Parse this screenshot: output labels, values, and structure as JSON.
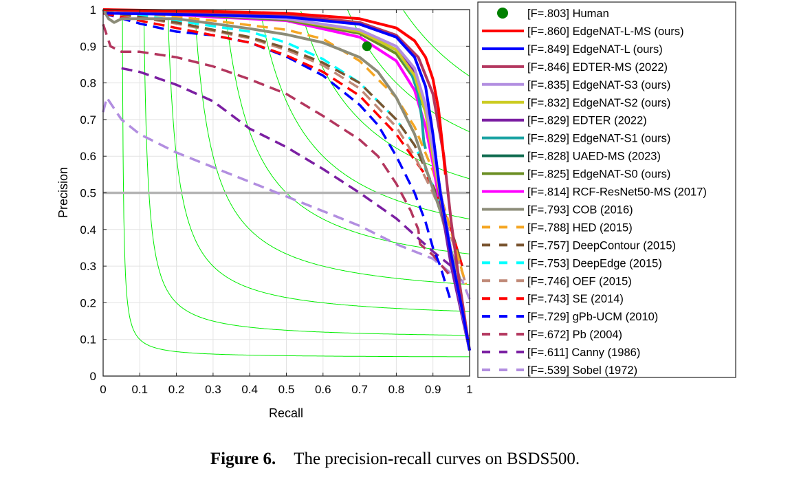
{
  "chart_data": {
    "type": "line",
    "xlabel": "Recall",
    "ylabel": "Precision",
    "xlim": [
      0,
      1
    ],
    "ylim": [
      0,
      1
    ],
    "xticks": [
      "0",
      "0.1",
      "0.2",
      "0.3",
      "0.4",
      "0.5",
      "0.6",
      "0.7",
      "0.8",
      "0.9",
      "1"
    ],
    "yticks": [
      "0",
      "0.1",
      "0.2",
      "0.3",
      "0.4",
      "0.5",
      "0.6",
      "0.7",
      "0.8",
      "0.9",
      "1"
    ],
    "grid": true,
    "legend_position": "right-outside",
    "iso_f_lines": [
      0.1,
      0.2,
      0.3,
      0.4,
      0.5,
      0.6,
      0.7,
      0.8,
      0.9
    ],
    "iso_f_color": "#00ee00",
    "reference_line": {
      "precision": 0.5,
      "color": "#b4b4b4"
    },
    "human_point": {
      "name": "[F=.803] Human",
      "recall": 0.72,
      "precision": 0.9,
      "color": "#008000"
    },
    "series": [
      {
        "name": "[F=.860] EdgeNAT-L-MS (ours)",
        "color": "#ff0000",
        "style": "solid",
        "points": [
          [
            0,
            1
          ],
          [
            0.3,
            0.995
          ],
          [
            0.5,
            0.99
          ],
          [
            0.7,
            0.975
          ],
          [
            0.8,
            0.95
          ],
          [
            0.85,
            0.915
          ],
          [
            0.88,
            0.87
          ],
          [
            0.9,
            0.81
          ],
          [
            0.915,
            0.73
          ],
          [
            0.925,
            0.64
          ],
          [
            0.934,
            0.55
          ]
        ]
      },
      {
        "name": "[F=.849] EdgeNAT-L (ours)",
        "color": "#0000ff",
        "style": "solid",
        "points": [
          [
            0.01,
            0.99
          ],
          [
            0.3,
            0.985
          ],
          [
            0.5,
            0.98
          ],
          [
            0.7,
            0.96
          ],
          [
            0.8,
            0.925
          ],
          [
            0.85,
            0.87
          ],
          [
            0.88,
            0.79
          ],
          [
            0.9,
            0.66
          ],
          [
            0.92,
            0.5
          ],
          [
            0.95,
            0.33
          ],
          [
            0.98,
            0.18
          ],
          [
            1,
            0.07
          ]
        ]
      },
      {
        "name": "[F=.846] EDTER-MS (2022)",
        "color": "#b3365e",
        "style": "solid",
        "points": [
          [
            0,
            1
          ],
          [
            0.3,
            0.99
          ],
          [
            0.5,
            0.985
          ],
          [
            0.7,
            0.965
          ],
          [
            0.8,
            0.93
          ],
          [
            0.86,
            0.87
          ],
          [
            0.9,
            0.77
          ],
          [
            0.93,
            0.6
          ],
          [
            0.95,
            0.42
          ],
          [
            0.97,
            0.27
          ],
          [
            1,
            0.07
          ]
        ]
      },
      {
        "name": "[F=.835] EdgeNAT-S3 (ours)",
        "color": "#b28ee0",
        "style": "solid",
        "points": [
          [
            0,
            1
          ],
          [
            0.3,
            0.985
          ],
          [
            0.5,
            0.975
          ],
          [
            0.7,
            0.945
          ],
          [
            0.8,
            0.9
          ],
          [
            0.85,
            0.84
          ],
          [
            0.88,
            0.74
          ],
          [
            0.9,
            0.62
          ],
          [
            0.93,
            0.45
          ],
          [
            0.96,
            0.28
          ],
          [
            1,
            0.07
          ]
        ]
      },
      {
        "name": "[F=.832] EdgeNAT-S2 (ours)",
        "color": "#cccc22",
        "style": "solid",
        "points": [
          [
            0,
            1
          ],
          [
            0.3,
            0.985
          ],
          [
            0.5,
            0.975
          ],
          [
            0.7,
            0.94
          ],
          [
            0.8,
            0.89
          ],
          [
            0.85,
            0.82
          ],
          [
            0.88,
            0.72
          ],
          [
            0.9,
            0.6
          ],
          [
            0.93,
            0.44
          ],
          [
            0.96,
            0.28
          ],
          [
            1,
            0.07
          ]
        ]
      },
      {
        "name": "[F=.829] EDTER (2022)",
        "color": "#7b1fa2",
        "style": "solid",
        "points": [
          [
            0,
            1
          ],
          [
            0.3,
            0.985
          ],
          [
            0.5,
            0.975
          ],
          [
            0.7,
            0.94
          ],
          [
            0.8,
            0.89
          ],
          [
            0.85,
            0.83
          ],
          [
            0.88,
            0.74
          ],
          [
            0.9,
            0.63
          ],
          [
            0.92,
            0.48
          ],
          [
            0.95,
            0.3
          ],
          [
            1,
            0.07
          ]
        ]
      },
      {
        "name": "[F=.829] EdgeNAT-S1 (ours)",
        "color": "#1aa3a3",
        "style": "solid",
        "points": [
          [
            0,
            1
          ],
          [
            0.3,
            0.985
          ],
          [
            0.5,
            0.975
          ],
          [
            0.7,
            0.94
          ],
          [
            0.8,
            0.89
          ],
          [
            0.84,
            0.83
          ],
          [
            0.86,
            0.77
          ],
          [
            0.87,
            0.7
          ],
          [
            0.875,
            0.64
          ],
          [
            0.88,
            0.62
          ]
        ]
      },
      {
        "name": "[F=.828] UAED-MS (2023)",
        "color": "#0e6b4f",
        "style": "solid",
        "points": [
          [
            0,
            1
          ],
          [
            0.3,
            0.985
          ],
          [
            0.5,
            0.975
          ],
          [
            0.7,
            0.94
          ],
          [
            0.8,
            0.89
          ],
          [
            0.85,
            0.82
          ],
          [
            0.88,
            0.73
          ],
          [
            0.9,
            0.62
          ],
          [
            0.93,
            0.45
          ],
          [
            0.96,
            0.28
          ],
          [
            1,
            0.07
          ]
        ]
      },
      {
        "name": "[F=.825] EdgeNAT-S0 (ours)",
        "color": "#6b8e23",
        "style": "solid",
        "points": [
          [
            0,
            1
          ],
          [
            0.3,
            0.983
          ],
          [
            0.5,
            0.972
          ],
          [
            0.7,
            0.935
          ],
          [
            0.8,
            0.88
          ],
          [
            0.85,
            0.81
          ],
          [
            0.88,
            0.72
          ],
          [
            0.9,
            0.61
          ],
          [
            0.93,
            0.44
          ],
          [
            0.96,
            0.28
          ],
          [
            1,
            0.07
          ]
        ]
      },
      {
        "name": "[F=.814] RCF-ResNet50-MS (2017)",
        "color": "#ff00ff",
        "style": "solid",
        "points": [
          [
            0,
            1
          ],
          [
            0.3,
            0.98
          ],
          [
            0.5,
            0.97
          ],
          [
            0.7,
            0.925
          ],
          [
            0.8,
            0.86
          ],
          [
            0.85,
            0.78
          ],
          [
            0.88,
            0.68
          ],
          [
            0.9,
            0.58
          ],
          [
            0.915,
            0.49
          ]
        ]
      },
      {
        "name": "[F=.793] COB (2016)",
        "color": "#8c8c78",
        "style": "solid",
        "points": [
          [
            0,
            1
          ],
          [
            0.015,
            0.975
          ],
          [
            0.03,
            0.965
          ],
          [
            0.05,
            0.975
          ],
          [
            0.2,
            0.975
          ],
          [
            0.3,
            0.962
          ],
          [
            0.4,
            0.948
          ],
          [
            0.5,
            0.932
          ],
          [
            0.6,
            0.91
          ],
          [
            0.7,
            0.87
          ],
          [
            0.75,
            0.83
          ],
          [
            0.8,
            0.76
          ],
          [
            0.85,
            0.66
          ],
          [
            0.88,
            0.57
          ],
          [
            0.92,
            0.45
          ],
          [
            0.95,
            0.34
          ],
          [
            0.975,
            0.26
          ]
        ]
      },
      {
        "name": "[F=.788] HED (2015)",
        "color": "#f5a623",
        "style": "dashed",
        "points": [
          [
            0,
            1
          ],
          [
            0.3,
            0.97
          ],
          [
            0.5,
            0.945
          ],
          [
            0.6,
            0.92
          ],
          [
            0.7,
            0.86
          ],
          [
            0.8,
            0.76
          ],
          [
            0.85,
            0.68
          ],
          [
            0.9,
            0.56
          ],
          [
            0.94,
            0.43
          ],
          [
            0.97,
            0.32
          ],
          [
            0.99,
            0.25
          ]
        ]
      },
      {
        "name": "[F=.757] DeepContour (2015)",
        "color": "#7a5530",
        "style": "dashed",
        "points": [
          [
            0,
            0.995
          ],
          [
            0.2,
            0.965
          ],
          [
            0.4,
            0.925
          ],
          [
            0.5,
            0.895
          ],
          [
            0.6,
            0.855
          ],
          [
            0.7,
            0.8
          ],
          [
            0.8,
            0.7
          ],
          [
            0.85,
            0.63
          ],
          [
            0.9,
            0.52
          ],
          [
            0.95,
            0.4
          ],
          [
            0.98,
            0.3
          ]
        ]
      },
      {
        "name": "[F=.753] DeepEdge (2015)",
        "color": "#00ffff",
        "style": "dashed",
        "points": [
          [
            0,
            1
          ],
          [
            0.2,
            0.97
          ],
          [
            0.4,
            0.94
          ],
          [
            0.5,
            0.91
          ],
          [
            0.6,
            0.865
          ],
          [
            0.7,
            0.8
          ],
          [
            0.8,
            0.7
          ],
          [
            0.85,
            0.63
          ],
          [
            0.9,
            0.52
          ],
          [
            0.93,
            0.43
          ],
          [
            0.95,
            0.34
          ]
        ]
      },
      {
        "name": "[F=.746] OEF (2015)",
        "color": "#c08a78",
        "style": "dashed",
        "points": [
          [
            0,
            0.995
          ],
          [
            0.2,
            0.962
          ],
          [
            0.4,
            0.922
          ],
          [
            0.5,
            0.89
          ],
          [
            0.6,
            0.848
          ],
          [
            0.7,
            0.785
          ],
          [
            0.8,
            0.68
          ],
          [
            0.85,
            0.6
          ],
          [
            0.9,
            0.5
          ],
          [
            0.95,
            0.38
          ],
          [
            0.99,
            0.25
          ]
        ]
      },
      {
        "name": "[F=.743] SE (2014)",
        "color": "#ff0000",
        "style": "dashed",
        "points": [
          [
            0,
            0.99
          ],
          [
            0.1,
            0.97
          ],
          [
            0.2,
            0.95
          ],
          [
            0.3,
            0.93
          ],
          [
            0.4,
            0.91
          ],
          [
            0.5,
            0.875
          ],
          [
            0.6,
            0.83
          ],
          [
            0.7,
            0.765
          ],
          [
            0.8,
            0.66
          ],
          [
            0.85,
            0.59
          ],
          [
            0.9,
            0.52
          ],
          [
            0.95,
            0.4
          ],
          [
            0.98,
            0.3
          ]
        ]
      },
      {
        "name": "[F=.729] gPb-UCM (2010)",
        "color": "#0000ff",
        "style": "dashed",
        "points": [
          [
            0,
            0.99
          ],
          [
            0.1,
            0.962
          ],
          [
            0.2,
            0.94
          ],
          [
            0.3,
            0.93
          ],
          [
            0.4,
            0.91
          ],
          [
            0.5,
            0.872
          ],
          [
            0.6,
            0.82
          ],
          [
            0.7,
            0.74
          ],
          [
            0.75,
            0.685
          ],
          [
            0.8,
            0.6
          ],
          [
            0.85,
            0.5
          ],
          [
            0.88,
            0.42
          ],
          [
            0.9,
            0.35
          ],
          [
            0.92,
            0.3
          ],
          [
            0.95,
            0.2
          ]
        ]
      },
      {
        "name": "[F=.672] Pb (2004)",
        "color": "#b3365e",
        "style": "dashed",
        "points": [
          [
            0,
            0.96
          ],
          [
            0.02,
            0.9
          ],
          [
            0.05,
            0.885
          ],
          [
            0.1,
            0.885
          ],
          [
            0.2,
            0.87
          ],
          [
            0.3,
            0.845
          ],
          [
            0.4,
            0.81
          ],
          [
            0.5,
            0.77
          ],
          [
            0.6,
            0.71
          ],
          [
            0.7,
            0.645
          ],
          [
            0.75,
            0.6
          ],
          [
            0.8,
            0.525
          ],
          [
            0.84,
            0.45
          ],
          [
            0.86,
            0.4
          ],
          [
            0.865,
            0.36
          ],
          [
            0.9,
            0.33
          ],
          [
            0.95,
            0.27
          ]
        ]
      },
      {
        "name": "[F=.611] Canny (1986)",
        "color": "#7b1fa2",
        "style": "dashed",
        "points": [
          [
            0.05,
            0.84
          ],
          [
            0.1,
            0.83
          ],
          [
            0.2,
            0.795
          ],
          [
            0.3,
            0.75
          ],
          [
            0.4,
            0.675
          ],
          [
            0.5,
            0.625
          ],
          [
            0.6,
            0.565
          ],
          [
            0.7,
            0.5
          ],
          [
            0.75,
            0.465
          ],
          [
            0.8,
            0.43
          ],
          [
            0.85,
            0.385
          ],
          [
            0.9,
            0.34
          ],
          [
            0.95,
            0.3
          ]
        ]
      },
      {
        "name": "[F=.539] Sobel (1972)",
        "color": "#b28ee0",
        "style": "dashed",
        "points": [
          [
            0,
            0.72
          ],
          [
            0.01,
            0.76
          ],
          [
            0.05,
            0.7
          ],
          [
            0.1,
            0.66
          ],
          [
            0.2,
            0.61
          ],
          [
            0.3,
            0.57
          ],
          [
            0.4,
            0.53
          ],
          [
            0.5,
            0.49
          ],
          [
            0.6,
            0.45
          ],
          [
            0.7,
            0.41
          ],
          [
            0.8,
            0.36
          ],
          [
            0.9,
            0.32
          ],
          [
            0.95,
            0.28
          ],
          [
            0.98,
            0.26
          ],
          [
            1,
            0.21
          ]
        ]
      }
    ]
  },
  "caption": {
    "label": "Figure 6.",
    "text": "The precision-recall curves on BSDS500."
  }
}
